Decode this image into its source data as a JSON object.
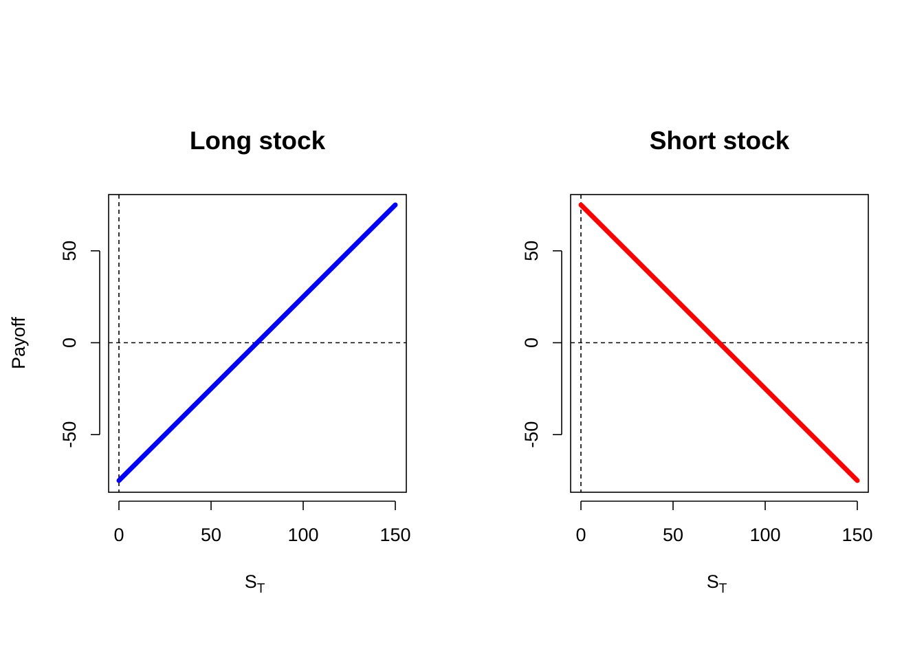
{
  "figure": {
    "shared_ylabel": "Payoff"
  },
  "chart_data": [
    {
      "type": "line",
      "title": "Long stock",
      "xlabel_main": "S",
      "xlabel_sub": "T",
      "ylabel": "",
      "xlim": [
        0,
        150
      ],
      "ylim": [
        -75,
        75
      ],
      "xticks": [
        0,
        50,
        100,
        150
      ],
      "yticks": [
        -50,
        0,
        50
      ],
      "xtick_labels": [
        "0",
        "50",
        "100",
        "150"
      ],
      "ytick_labels": [
        "-50",
        "0",
        "50"
      ],
      "reference_lines": {
        "h": 0,
        "v": 0,
        "style": "dashed"
      },
      "grid": false,
      "series": [
        {
          "x": [
            0,
            150
          ],
          "y": [
            -75,
            75
          ],
          "color": "#0000ff"
        }
      ]
    },
    {
      "type": "line",
      "title": "Short stock",
      "xlabel_main": "S",
      "xlabel_sub": "T",
      "ylabel": "",
      "xlim": [
        0,
        150
      ],
      "ylim": [
        -75,
        75
      ],
      "xticks": [
        0,
        50,
        100,
        150
      ],
      "yticks": [
        -50,
        0,
        50
      ],
      "xtick_labels": [
        "0",
        "50",
        "100",
        "150"
      ],
      "ytick_labels": [
        "-50",
        "0",
        "50"
      ],
      "reference_lines": {
        "h": 0,
        "v": 0,
        "style": "dashed"
      },
      "grid": false,
      "series": [
        {
          "x": [
            0,
            150
          ],
          "y": [
            75,
            -75
          ],
          "color": "#ff0000"
        }
      ]
    }
  ]
}
